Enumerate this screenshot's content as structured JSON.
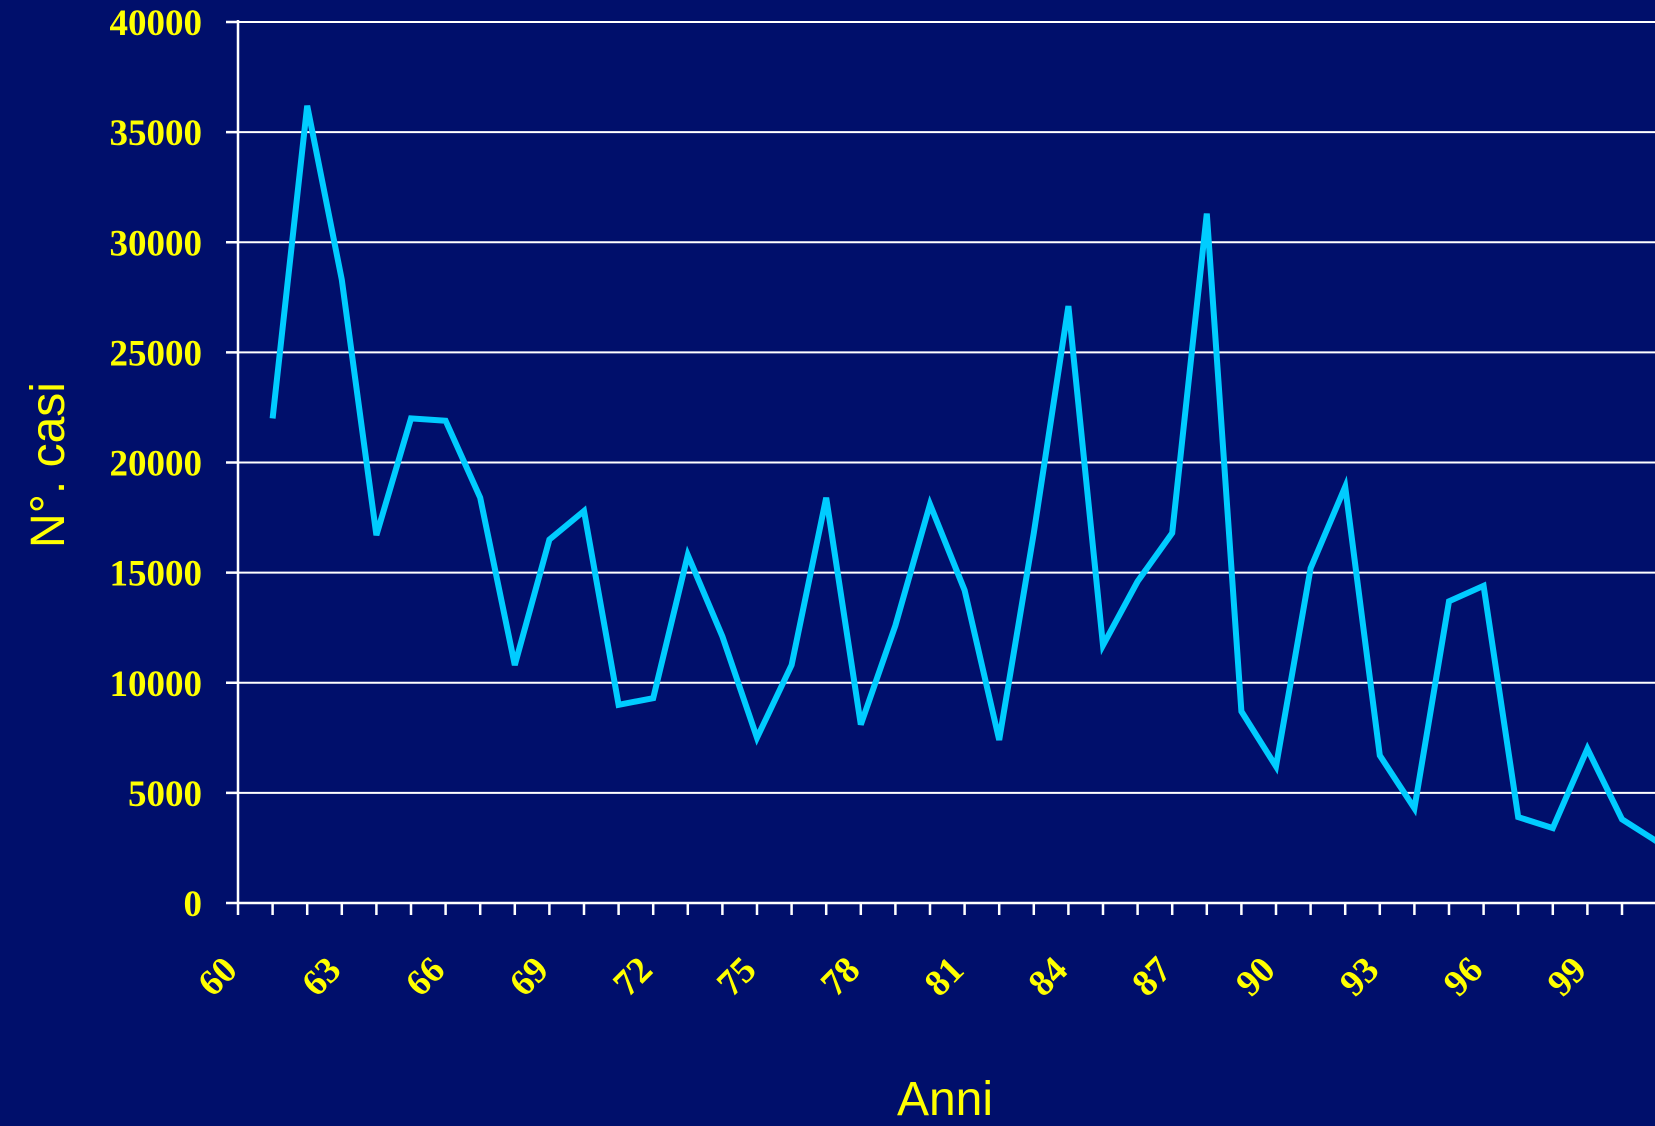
{
  "chart_data": {
    "type": "line",
    "title": "",
    "xlabel": "Anni",
    "ylabel": "N°. casi",
    "ylim": [
      0,
      40000
    ],
    "yticks": [
      0,
      5000,
      10000,
      15000,
      20000,
      25000,
      30000,
      35000,
      40000
    ],
    "xtick_labels": [
      "60",
      "63",
      "66",
      "69",
      "72",
      "75",
      "78",
      "81",
      "84",
      "87",
      "90",
      "93",
      "96",
      "99"
    ],
    "grid": true,
    "legend": "none",
    "series": [
      {
        "x": [
          1961,
          1962,
          1963,
          1964,
          1965,
          1966,
          1967,
          1968,
          1969,
          1970,
          1971,
          1972,
          1973,
          1974,
          1975,
          1976,
          1977,
          1978,
          1979,
          1980,
          1981,
          1982,
          1983,
          1984,
          1985,
          1986,
          1987,
          1988,
          1989,
          1990,
          1991,
          1992,
          1993,
          1994,
          1995,
          1996,
          1997,
          1998,
          1999,
          2000,
          2001
        ],
        "values": [
          22000,
          36200,
          28300,
          16700,
          22000,
          21900,
          18400,
          10800,
          16500,
          17800,
          9000,
          9300,
          15800,
          12100,
          7500,
          10800,
          18400,
          8100,
          12600,
          18100,
          14200,
          7400,
          16800,
          27100,
          11700,
          14600,
          16800,
          31300,
          8700,
          6200,
          15200,
          18900,
          6700,
          4300,
          13700,
          14400,
          3900,
          3400,
          7000,
          3800,
          2800
        ],
        "color": "#00ccff"
      }
    ]
  }
}
